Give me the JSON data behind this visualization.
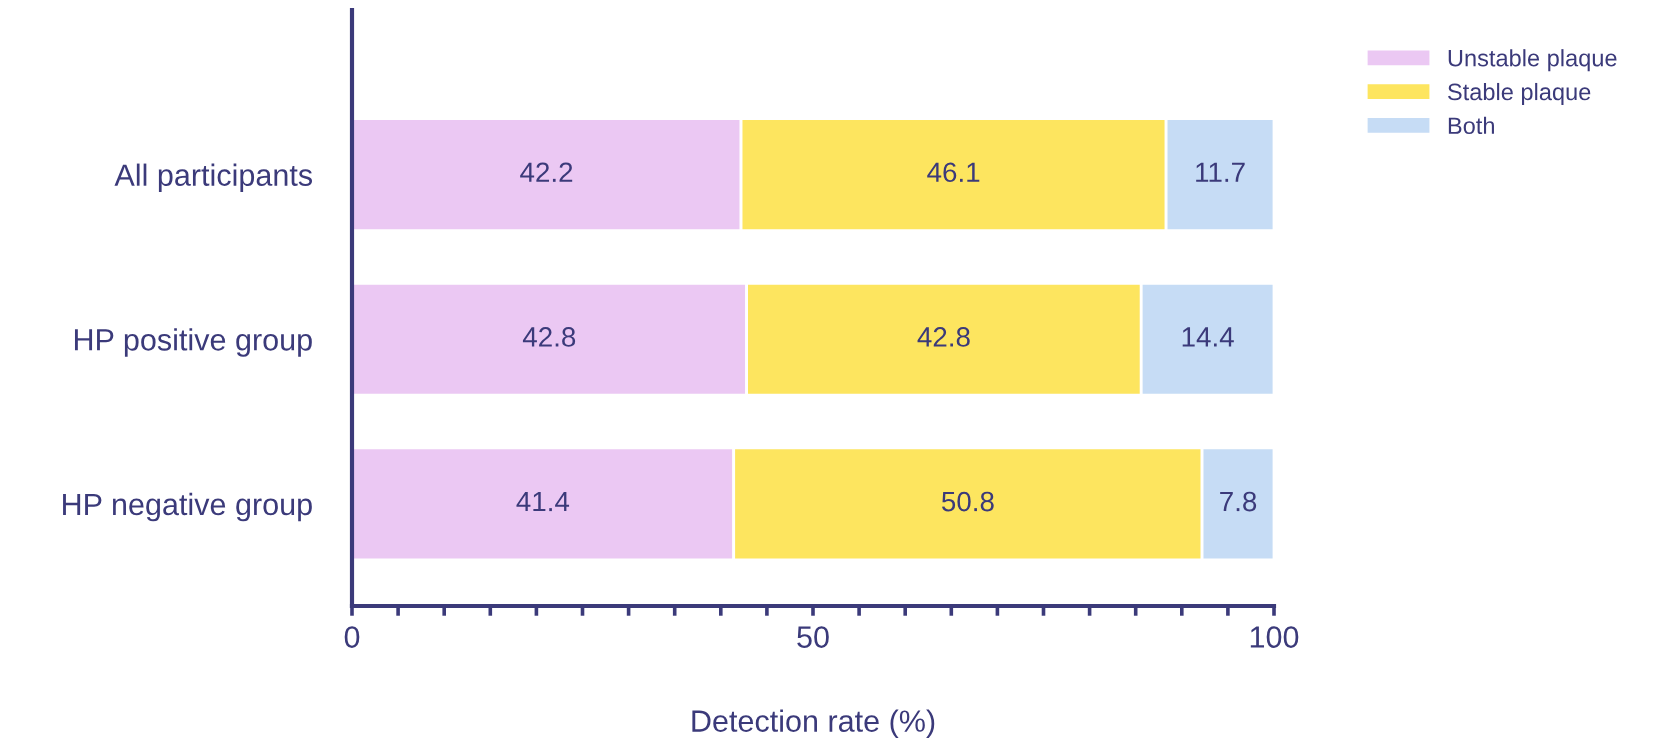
{
  "chart_data": {
    "type": "bar",
    "orientation": "horizontal",
    "stacked": true,
    "xlabel": "Detection rate (%)",
    "categories": [
      "All participants",
      "HP positive group",
      "HP negative group"
    ],
    "series": [
      {
        "name": "Unstable plaque",
        "color": "#ebc8f3",
        "values": [
          42.2,
          42.8,
          41.4
        ]
      },
      {
        "name": "Stable plaque",
        "color": "#fde55f",
        "values": [
          46.1,
          42.8,
          50.8
        ]
      },
      {
        "name": "Both",
        "color": "#c6dcf5",
        "values": [
          11.7,
          14.4,
          7.8
        ]
      }
    ],
    "xlim": [
      0,
      100
    ],
    "xticks": [
      0,
      {
        "value": 5,
        "label": null
      },
      {
        "value": 10,
        "label": null
      },
      {
        "value": 15,
        "label": null
      },
      {
        "value": 20,
        "label": null
      },
      {
        "value": 25,
        "label": null
      },
      {
        "value": 30,
        "label": null
      },
      {
        "value": 35,
        "label": null
      },
      {
        "value": 40,
        "label": null
      },
      {
        "value": 45,
        "label": null
      },
      50,
      {
        "value": 55,
        "label": null
      },
      {
        "value": 60,
        "label": null
      },
      {
        "value": 65,
        "label": null
      },
      {
        "value": 70,
        "label": null
      },
      {
        "value": 75,
        "label": null
      },
      {
        "value": 80,
        "label": null
      },
      {
        "value": 85,
        "label": null
      },
      {
        "value": 90,
        "label": null
      },
      {
        "value": 95,
        "label": null
      },
      100
    ],
    "data_labels": true,
    "legend": "top right",
    "grid": false
  }
}
